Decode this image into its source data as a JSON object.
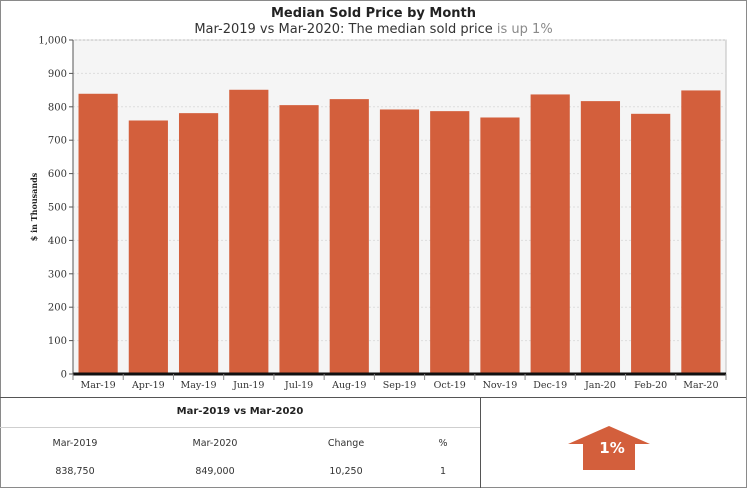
{
  "title": "Median Sold Price by Month",
  "subtitle": {
    "main": "Mar-2019 vs Mar-2020: The median sold price",
    "highlight": "is up 1%"
  },
  "colors": {
    "bar": "#d35f3c",
    "arrow": "#d35f3c",
    "plot_bg": "#f5f5f5",
    "grid": "#dddddd",
    "axis": "#111111"
  },
  "chart_data": {
    "type": "bar",
    "title": "Median Sold Price by Month",
    "ylabel": "$ in Thousands",
    "xlabel": "",
    "categories": [
      "Mar-19",
      "Apr-19",
      "May-19",
      "Jun-19",
      "Jul-19",
      "Aug-19",
      "Sep-19",
      "Oct-19",
      "Nov-19",
      "Dec-19",
      "Jan-20",
      "Feb-20",
      "Mar-20"
    ],
    "values": [
      839,
      759,
      781,
      851,
      805,
      823,
      792,
      787,
      768,
      837,
      817,
      779,
      849
    ],
    "ylim": [
      0,
      1000
    ],
    "yticks": [
      0,
      100,
      200,
      300,
      400,
      500,
      600,
      700,
      800,
      900,
      1000
    ],
    "ytick_labels": [
      "0",
      "100",
      "200",
      "300",
      "400",
      "500",
      "600",
      "700",
      "800",
      "900",
      "1,000"
    ],
    "grid": true
  },
  "summary": {
    "heading": "Mar-2019 vs Mar-2020",
    "columns": [
      "Mar-2019",
      "Mar-2020",
      "Change",
      "%"
    ],
    "values": [
      "838,750",
      "849,000",
      "10,250",
      "1"
    ]
  },
  "indicator": {
    "icon": "up-arrow-icon",
    "label": "1%"
  }
}
